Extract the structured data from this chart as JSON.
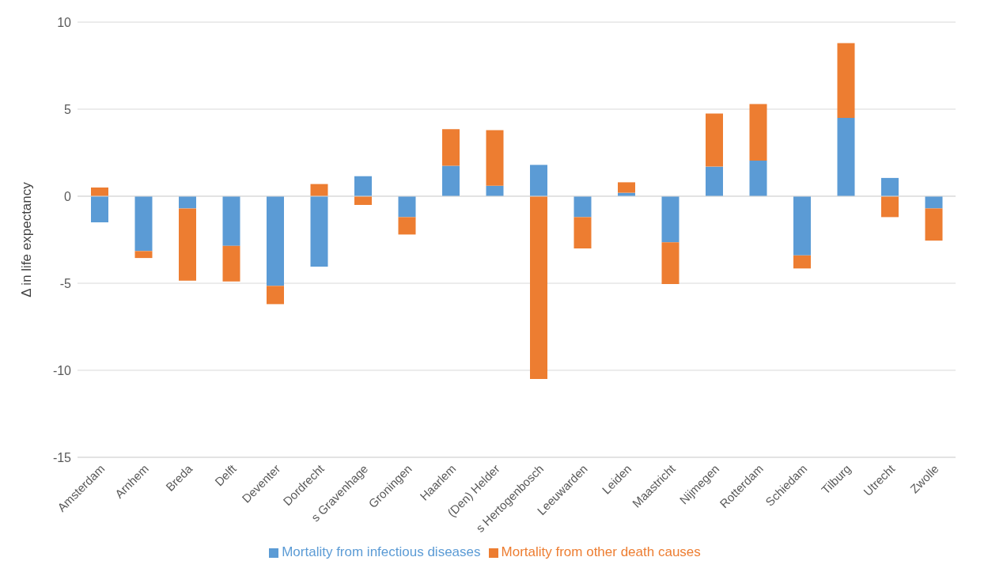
{
  "chart_data": {
    "type": "bar",
    "stacked": true,
    "ylabel": "Δ in life expectancy",
    "categories": [
      "Amsterdam",
      "Arnhem",
      "Breda",
      "Delft",
      "Deventer",
      "Dordrecht",
      "s Gravenhage",
      "Groningen",
      "Haarlem",
      "(Den) Helder",
      "s Hertogenbosch",
      "Leeuwarden",
      "Leiden",
      "Maastricht",
      "Nijmegen",
      "Rotterdam",
      "Schiedam",
      "Tilburg",
      "Utrecht",
      "Zwolle"
    ],
    "series": [
      {
        "name": "Mortality from infectious diseases",
        "color": "#5b9bd5",
        "values": [
          -1.5,
          -3.15,
          -0.7,
          -2.85,
          -5.15,
          -4.05,
          1.15,
          -1.2,
          1.75,
          0.6,
          1.8,
          -1.2,
          0.2,
          -2.65,
          1.7,
          2.05,
          -3.4,
          4.5,
          1.05,
          -0.7
        ]
      },
      {
        "name": "Mortality from other death causes",
        "color": "#ed7d31",
        "values": [
          0.5,
          -0.4,
          -4.15,
          -2.05,
          -1.05,
          0.7,
          -0.5,
          -1.0,
          2.1,
          3.2,
          -10.5,
          -1.8,
          0.6,
          -2.4,
          3.05,
          3.25,
          -0.75,
          4.3,
          -1.2,
          -1.85
        ]
      }
    ],
    "ylim": [
      -15,
      10
    ],
    "yticks": [
      -15,
      -10,
      -5,
      0,
      5,
      10
    ],
    "grid": "y",
    "legend": "bottom"
  }
}
